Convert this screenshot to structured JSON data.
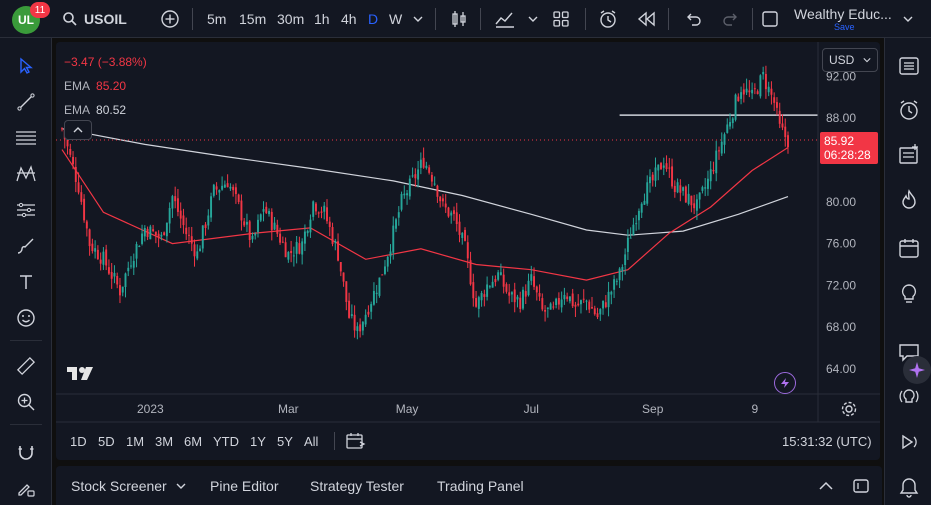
{
  "app": {
    "logo_text": "UL",
    "badge_count": "11"
  },
  "toolbar": {
    "symbol": "USOIL",
    "timeframes": [
      "5m",
      "15m",
      "30m",
      "1h",
      "4h",
      "D",
      "W"
    ],
    "active_timeframe": "D",
    "account_name": "Wealthy Educ...",
    "save_label": "Save"
  },
  "legend": {
    "change": "−3.47 (−3.88%)",
    "ema1_label": "EMA",
    "ema1_value": "85.20",
    "ema2_label": "EMA",
    "ema2_value": "80.52"
  },
  "price_scale": {
    "currency": "USD",
    "last_price": "85.92",
    "countdown": "06:28:28"
  },
  "range_buttons": [
    "1D",
    "5D",
    "1M",
    "3M",
    "6M",
    "YTD",
    "1Y",
    "5Y",
    "All"
  ],
  "clock": "15:31:32 (UTC)",
  "bottom_panel": {
    "tabs": [
      "Stock Screener",
      "Pine Editor",
      "Strategy Tester",
      "Trading Panel"
    ]
  },
  "colors": {
    "up": "#26a69a",
    "down": "#f23645",
    "ema_fast": "#f23645",
    "ema_slow": "#d1d4dc",
    "accent": "#2962ff"
  },
  "chart_data": {
    "type": "candlestick",
    "x_tick_labels": [
      "2023",
      "Mar",
      "May",
      "Jul",
      "Sep",
      "9"
    ],
    "y_tick_labels": [
      "92.00",
      "88.00",
      "84.00",
      "80.00",
      "76.00",
      "72.00",
      "68.00",
      "64.00"
    ],
    "ylim": [
      61.6,
      95.3
    ],
    "horizontal_line": 88.3,
    "last_price": 85.92,
    "close_path": [
      [
        0,
        87.0
      ],
      [
        6,
        81.5
      ],
      [
        10,
        76.0
      ],
      [
        15,
        74.5
      ],
      [
        21,
        71.5
      ],
      [
        25,
        74.5
      ],
      [
        30,
        77.5
      ],
      [
        36,
        76.5
      ],
      [
        40,
        80.5
      ],
      [
        45,
        77.0
      ],
      [
        49,
        75.0
      ],
      [
        55,
        81.0
      ],
      [
        60,
        82.0
      ],
      [
        64,
        79.5
      ],
      [
        69,
        76.0
      ],
      [
        73,
        79.5
      ],
      [
        78,
        77.0
      ],
      [
        82,
        75.0
      ],
      [
        87,
        76.0
      ],
      [
        91,
        80.0
      ],
      [
        95,
        79.0
      ],
      [
        100,
        75.0
      ],
      [
        104,
        69.0
      ],
      [
        107,
        67.5
      ],
      [
        111,
        70.0
      ],
      [
        115,
        72.5
      ],
      [
        119,
        76.0
      ],
      [
        123,
        80.0
      ],
      [
        127,
        82.0
      ],
      [
        131,
        84.0
      ],
      [
        135,
        82.0
      ],
      [
        138,
        79.5
      ],
      [
        142,
        78.5
      ],
      [
        146,
        75.5
      ],
      [
        150,
        70.0
      ],
      [
        154,
        72.0
      ],
      [
        158,
        73.0
      ],
      [
        162,
        71.0
      ],
      [
        166,
        70.5
      ],
      [
        170,
        72.5
      ],
      [
        174,
        69.5
      ],
      [
        178,
        69.5
      ],
      [
        182,
        71.5
      ],
      [
        186,
        70.0
      ],
      [
        190,
        70.5
      ],
      [
        194,
        69.0
      ],
      [
        198,
        71.0
      ],
      [
        202,
        73.0
      ],
      [
        206,
        77.0
      ],
      [
        210,
        80.5
      ],
      [
        214,
        82.0
      ],
      [
        218,
        84.0
      ],
      [
        222,
        81.5
      ],
      [
        226,
        80.5
      ],
      [
        230,
        79.5
      ],
      [
        234,
        82.0
      ],
      [
        238,
        85.0
      ],
      [
        242,
        88.0
      ],
      [
        246,
        91.0
      ],
      [
        250,
        90.0
      ],
      [
        254,
        92.0
      ],
      [
        258,
        89.5
      ],
      [
        260,
        87.0
      ],
      [
        263,
        85.9
      ]
    ],
    "ema_fast_path": [
      [
        0,
        85.0
      ],
      [
        15,
        79.0
      ],
      [
        40,
        76.0
      ],
      [
        70,
        77.0
      ],
      [
        90,
        77.5
      ],
      [
        110,
        74.5
      ],
      [
        130,
        75.5
      ],
      [
        150,
        74.0
      ],
      [
        170,
        73.5
      ],
      [
        190,
        72.5
      ],
      [
        205,
        73.5
      ],
      [
        220,
        77.0
      ],
      [
        235,
        79.5
      ],
      [
        250,
        83.0
      ],
      [
        263,
        85.2
      ]
    ],
    "ema_slow_path": [
      [
        0,
        87.0
      ],
      [
        30,
        85.5
      ],
      [
        60,
        84.3
      ],
      [
        90,
        83.2
      ],
      [
        120,
        82.0
      ],
      [
        145,
        80.6
      ],
      [
        170,
        78.8
      ],
      [
        190,
        77.3
      ],
      [
        205,
        76.8
      ],
      [
        225,
        77.2
      ],
      [
        245,
        78.8
      ],
      [
        263,
        80.5
      ]
    ]
  }
}
